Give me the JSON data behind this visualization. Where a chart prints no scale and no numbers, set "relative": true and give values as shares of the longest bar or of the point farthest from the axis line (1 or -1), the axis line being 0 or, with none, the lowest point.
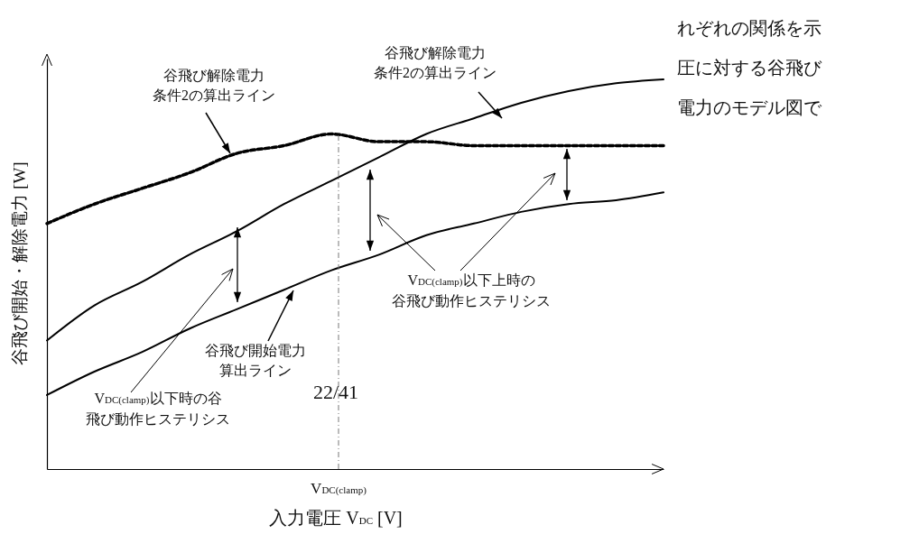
{
  "chart_data": {
    "type": "line",
    "relative": true,
    "xlabel": "入力電圧 V$_{DC}$ [V]",
    "ylabel": "谷飛び開始・解除電力 [W]",
    "categories": [
      null,
      null,
      null,
      null,
      null,
      null,
      null,
      null,
      null,
      null,
      null,
      null,
      null,
      null
    ],
    "series": [
      {
        "color": "#000000",
        "line_style": "solid",
        "values": [
          0.33,
          0.42,
          0.48,
          0.55,
          0.61,
          0.68,
          0.74,
          0.8,
          0.86,
          0.9,
          0.94,
          0.97,
          0.99,
          1
        ]
      },
      {
        "color": "#000000",
        "line_style": "solid",
        "values": [
          0.19,
          0.25,
          0.3,
          0.36,
          0.41,
          0.46,
          0.51,
          0.55,
          0.6,
          0.63,
          0.66,
          0.68,
          0.69,
          0.71
        ]
      },
      {
        "color": "#000000",
        "line_style": "dashed",
        "values": [
          0.63,
          0.68,
          0.72,
          0.76,
          0.81,
          0.83,
          0.86,
          0.84,
          0.84,
          0.83,
          0.83,
          0.83,
          0.83,
          0.83
        ]
      }
    ],
    "annotations": [
      "谷飛び解除電力条件2の算出ライン",
      "谷飛び解除電力条件2の算出ライン",
      "谷飛び開始電力算出ライン",
      "V$_{DC(clamp)}$以下時の谷飛び動作ヒステリシス",
      "V$_{DC(clamp)}$以下上時の谷飛び動作ヒステリシス",
      "22/41",
      "れぞれの関係を示圧に対する谷飛び電力のモデル図で",
      "V$_{DC(clamp)}$"
    ]
  }
}
